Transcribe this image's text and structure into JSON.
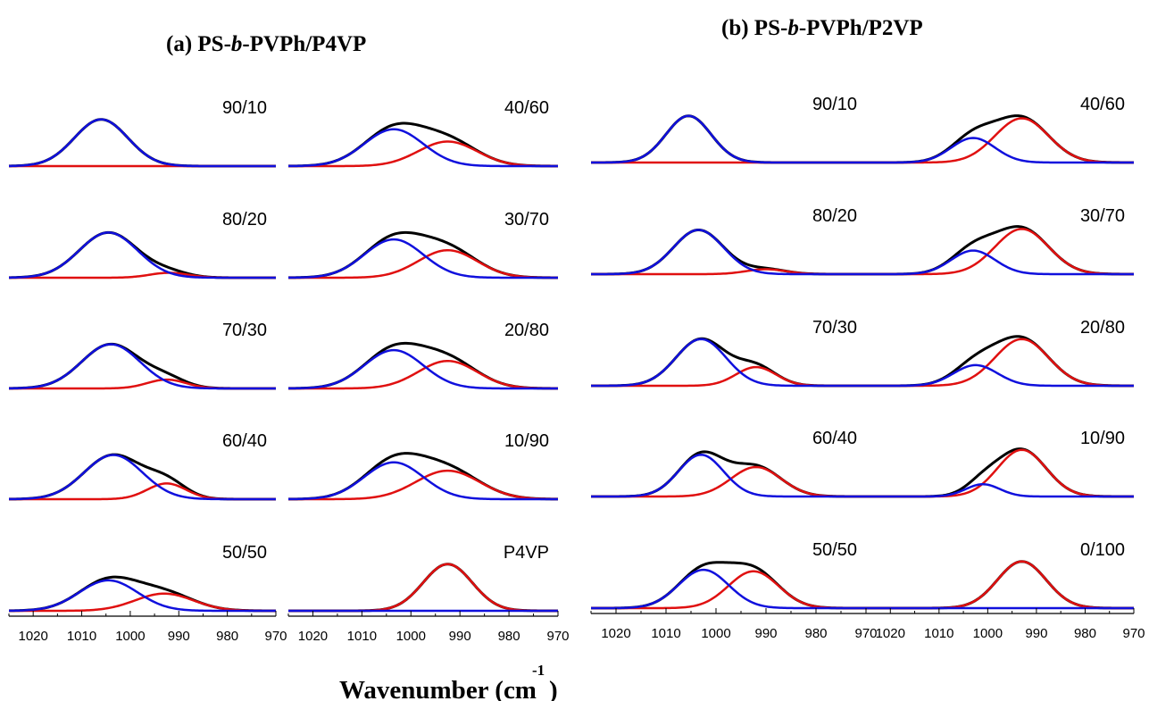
{
  "figure": {
    "colors": {
      "total": "#000000",
      "free": "#1010dd",
      "bonded": "#e01010"
    },
    "xlabel_main": "Wavenumber (cm",
    "xlabel_sup": "-1",
    "xlabel_close": ")"
  },
  "chart_data": [
    {
      "type": "line",
      "panel_prefix": "(a) PS-",
      "panel_italic": "b",
      "panel_suffix": "-PVPh/P4VP",
      "xlim": [
        1025,
        970
      ],
      "xticks": [
        "1020",
        "1010",
        "1000",
        "990",
        "980",
        "970"
      ],
      "subplots": [
        {
          "label": "90/10",
          "column": 0,
          "row": 0,
          "free": {
            "center": 1006,
            "width": 5.5,
            "height": 0.95
          },
          "bonded": null
        },
        {
          "label": "80/20",
          "column": 0,
          "row": 1,
          "free": {
            "center": 1004.5,
            "width": 6,
            "height": 0.92
          },
          "bonded": {
            "center": 992,
            "width": 4,
            "height": 0.1
          }
        },
        {
          "label": "70/30",
          "column": 0,
          "row": 2,
          "free": {
            "center": 1004,
            "width": 6,
            "height": 0.9
          },
          "bonded": {
            "center": 992.5,
            "width": 4,
            "height": 0.18
          }
        },
        {
          "label": "60/40",
          "column": 0,
          "row": 3,
          "free": {
            "center": 1003.5,
            "width": 6,
            "height": 0.9
          },
          "bonded": {
            "center": 992.5,
            "width": 4,
            "height": 0.32
          }
        },
        {
          "label": "50/50",
          "column": 0,
          "row": 4,
          "free": {
            "center": 1004.5,
            "width": 6,
            "height": 0.62
          },
          "bonded": {
            "center": 993,
            "width": 6,
            "height": 0.35
          }
        },
        {
          "label": "40/60",
          "column": 1,
          "row": 0,
          "free": {
            "center": 1003.5,
            "width": 6,
            "height": 0.75
          },
          "bonded": {
            "center": 992.5,
            "width": 6,
            "height": 0.5
          }
        },
        {
          "label": "30/70",
          "column": 1,
          "row": 1,
          "free": {
            "center": 1003.5,
            "width": 6,
            "height": 0.78
          },
          "bonded": {
            "center": 992.5,
            "width": 6,
            "height": 0.56
          }
        },
        {
          "label": "20/80",
          "column": 1,
          "row": 2,
          "free": {
            "center": 1003.5,
            "width": 6,
            "height": 0.78
          },
          "bonded": {
            "center": 992.5,
            "width": 6,
            "height": 0.56
          }
        },
        {
          "label": "10/90",
          "column": 1,
          "row": 3,
          "free": {
            "center": 1003.5,
            "width": 6,
            "height": 0.75
          },
          "bonded": {
            "center": 992.5,
            "width": 6.5,
            "height": 0.58
          }
        },
        {
          "label": "P4VP",
          "column": 1,
          "row": 4,
          "free": null,
          "bonded": {
            "center": 992.5,
            "width": 5,
            "height": 0.95
          }
        }
      ]
    },
    {
      "type": "line",
      "panel_prefix": "(b) PS-",
      "panel_italic": "b",
      "panel_suffix": "-PVPh/P2VP",
      "xlim": [
        1025,
        970
      ],
      "xticks": [
        "1020",
        "1010",
        "1000",
        "990",
        "980",
        "970"
      ],
      "subplots": [
        {
          "label": "90/10",
          "column": 0,
          "row": 0,
          "free": {
            "center": 1005.5,
            "width": 4.5,
            "height": 0.95
          },
          "bonded": null
        },
        {
          "label": "80/20",
          "column": 0,
          "row": 1,
          "free": {
            "center": 1003.5,
            "width": 5,
            "height": 0.9
          },
          "bonded": {
            "center": 990,
            "width": 4,
            "height": 0.1
          }
        },
        {
          "label": "70/30",
          "column": 0,
          "row": 2,
          "free": {
            "center": 1003,
            "width": 5,
            "height": 0.95
          },
          "bonded": {
            "center": 992,
            "width": 4,
            "height": 0.38
          }
        },
        {
          "label": "60/40",
          "column": 0,
          "row": 3,
          "free": {
            "center": 1003,
            "width": 4.5,
            "height": 0.85
          },
          "bonded": {
            "center": 992,
            "width": 5,
            "height": 0.6
          }
        },
        {
          "label": "50/50",
          "column": 0,
          "row": 4,
          "free": {
            "center": 1002.5,
            "width": 5,
            "height": 0.78
          },
          "bonded": {
            "center": 992.5,
            "width": 5,
            "height": 0.75
          }
        },
        {
          "label": "40/60",
          "column": 1,
          "row": 0,
          "free": {
            "center": 1003,
            "width": 4.5,
            "height": 0.5
          },
          "bonded": {
            "center": 993,
            "width": 5.5,
            "height": 0.9
          }
        },
        {
          "label": "30/70",
          "column": 1,
          "row": 1,
          "free": {
            "center": 1003,
            "width": 4.5,
            "height": 0.48
          },
          "bonded": {
            "center": 993,
            "width": 5.5,
            "height": 0.92
          }
        },
        {
          "label": "20/80",
          "column": 1,
          "row": 2,
          "free": {
            "center": 1002.5,
            "width": 4.5,
            "height": 0.42
          },
          "bonded": {
            "center": 993,
            "width": 5.5,
            "height": 0.95
          }
        },
        {
          "label": "10/90",
          "column": 1,
          "row": 3,
          "free": {
            "center": 1001,
            "width": 3.5,
            "height": 0.25
          },
          "bonded": {
            "center": 993,
            "width": 5,
            "height": 0.95
          }
        },
        {
          "label": "0/100",
          "column": 1,
          "row": 4,
          "free": null,
          "bonded": {
            "center": 993,
            "width": 5,
            "height": 0.95
          }
        }
      ]
    }
  ]
}
